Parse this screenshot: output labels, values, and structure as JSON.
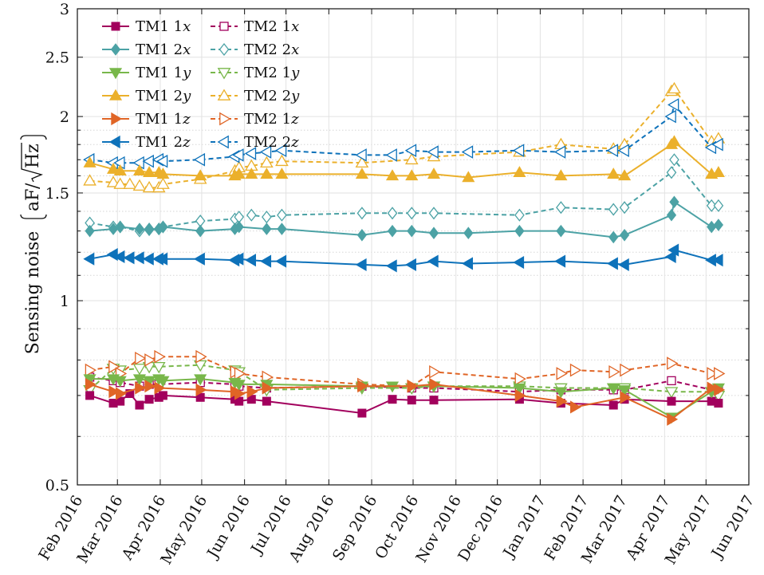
{
  "chart_data": {
    "type": "line",
    "title": "",
    "xlabel": "",
    "ylabel": "Sensing noise",
    "yunit": "aF/√Hz",
    "ylabel_parts": {
      "main": "Sensing noise",
      "unit_num": "aF",
      "unit_sqrt": "Hz"
    },
    "yscale": "log",
    "ylim": [
      0.5,
      3
    ],
    "yticks": [
      0.5,
      1,
      1.5,
      2,
      2.5,
      3
    ],
    "yticklabels": [
      "0.5",
      "1",
      "1.5",
      "2",
      "2.5",
      "3"
    ],
    "xlim": [
      "2016-02-01",
      "2017-06-01"
    ],
    "xticks": [
      "2016-02-01",
      "2016-03-01",
      "2016-04-01",
      "2016-05-01",
      "2016-06-01",
      "2016-07-01",
      "2016-08-01",
      "2016-09-01",
      "2016-10-01",
      "2016-11-01",
      "2016-12-01",
      "2017-01-01",
      "2017-02-01",
      "2017-03-01",
      "2017-04-01",
      "2017-05-01",
      "2017-06-01"
    ],
    "xticklabels": [
      "Feb 2016",
      "Mar 2016",
      "Apr 2016",
      "May 2016",
      "Jun 2016",
      "Jul 2016",
      "Aug 2016",
      "Sep 2016",
      "Oct 2016",
      "Nov 2016",
      "Dec 2016",
      "Jan 2017",
      "Feb 2017",
      "Mar 2017",
      "Apr 2017",
      "May 2017",
      "Jun 2017"
    ],
    "grid": true,
    "legend_position": "top-left",
    "series": [
      {
        "name": "TM1 1x",
        "label_main": "TM1 1",
        "label_axis": "x",
        "color": "#A2005D",
        "marker": "square",
        "filled": true,
        "dashed": false,
        "x": [
          "2016-02-10",
          "2016-02-27",
          "2016-03-03",
          "2016-03-10",
          "2016-03-17",
          "2016-03-24",
          "2016-03-31",
          "2016-04-03",
          "2016-04-30",
          "2016-05-25",
          "2016-05-28",
          "2016-06-06",
          "2016-06-17",
          "2016-08-25",
          "2016-09-16",
          "2016-09-30",
          "2016-10-16",
          "2016-12-17",
          "2017-01-16",
          "2017-02-23",
          "2017-03-03",
          "2017-04-06",
          "2017-05-05",
          "2017-05-10"
        ],
        "y": [
          0.7,
          0.68,
          0.685,
          0.705,
          0.675,
          0.69,
          0.695,
          0.7,
          0.695,
          0.69,
          0.685,
          0.69,
          0.685,
          0.655,
          0.69,
          0.688,
          0.688,
          0.69,
          0.68,
          0.675,
          0.69,
          0.685,
          0.685,
          0.68
        ]
      },
      {
        "name": "TM1 2x",
        "label_main": "TM1 2",
        "label_axis": "x",
        "color": "#4CA2A5",
        "marker": "diamond",
        "filled": true,
        "dashed": false,
        "x": [
          "2016-02-10",
          "2016-02-27",
          "2016-03-03",
          "2016-03-17",
          "2016-03-24",
          "2016-03-31",
          "2016-04-03",
          "2016-04-30",
          "2016-05-25",
          "2016-05-28",
          "2016-06-17",
          "2016-06-28",
          "2016-08-25",
          "2016-09-16",
          "2016-09-30",
          "2016-10-16",
          "2016-11-10",
          "2016-12-17",
          "2017-01-16",
          "2017-02-23",
          "2017-03-03",
          "2017-04-06",
          "2017-04-08",
          "2017-05-05",
          "2017-05-10"
        ],
        "y": [
          1.3,
          1.31,
          1.32,
          1.31,
          1.305,
          1.31,
          1.32,
          1.3,
          1.31,
          1.32,
          1.31,
          1.31,
          1.28,
          1.3,
          1.3,
          1.29,
          1.29,
          1.3,
          1.3,
          1.27,
          1.28,
          1.38,
          1.45,
          1.32,
          1.33
        ]
      },
      {
        "name": "TM1 1y",
        "label_main": "TM1 1",
        "label_axis": "y",
        "color": "#78B74A",
        "marker": "triangle-down",
        "filled": true,
        "dashed": false,
        "x": [
          "2016-02-10",
          "2016-02-27",
          "2016-03-03",
          "2016-03-17",
          "2016-03-24",
          "2016-03-31",
          "2016-04-03",
          "2016-04-30",
          "2016-05-25",
          "2016-05-28",
          "2016-06-17",
          "2016-08-25",
          "2016-09-16",
          "2016-10-16",
          "2016-12-17",
          "2017-01-16",
          "2017-02-23",
          "2017-03-03",
          "2017-04-06",
          "2017-05-05",
          "2017-05-10"
        ],
        "y": [
          0.745,
          0.745,
          0.74,
          0.745,
          0.74,
          0.745,
          0.74,
          0.745,
          0.735,
          0.73,
          0.73,
          0.725,
          0.725,
          0.725,
          0.72,
          0.71,
          0.72,
          0.715,
          0.645,
          0.71,
          0.72
        ]
      },
      {
        "name": "TM1 2y",
        "label_main": "TM1 2",
        "label_axis": "y",
        "color": "#EBB02B",
        "marker": "triangle-up",
        "filled": true,
        "dashed": false,
        "x": [
          "2016-02-10",
          "2016-02-27",
          "2016-03-03",
          "2016-03-17",
          "2016-03-24",
          "2016-03-31",
          "2016-04-03",
          "2016-04-30",
          "2016-05-25",
          "2016-05-28",
          "2016-06-06",
          "2016-06-17",
          "2016-06-28",
          "2016-08-25",
          "2016-09-16",
          "2016-09-30",
          "2016-10-16",
          "2016-11-10",
          "2016-12-17",
          "2017-01-16",
          "2017-02-23",
          "2017-03-03",
          "2017-04-06",
          "2017-04-08",
          "2017-05-05",
          "2017-05-10"
        ],
        "y": [
          1.68,
          1.64,
          1.63,
          1.63,
          1.62,
          1.62,
          1.61,
          1.6,
          1.6,
          1.61,
          1.61,
          1.61,
          1.61,
          1.61,
          1.6,
          1.6,
          1.61,
          1.59,
          1.62,
          1.6,
          1.61,
          1.6,
          1.8,
          1.82,
          1.61,
          1.62
        ]
      },
      {
        "name": "TM1 1z",
        "label_main": "TM1 1",
        "label_axis": "z",
        "color": "#E06526",
        "marker": "triangle-right",
        "filled": true,
        "dashed": false,
        "x": [
          "2016-02-10",
          "2016-02-27",
          "2016-03-03",
          "2016-03-17",
          "2016-03-24",
          "2016-03-31",
          "2016-04-30",
          "2016-05-25",
          "2016-05-28",
          "2016-06-06",
          "2016-06-17",
          "2016-08-25",
          "2016-09-30",
          "2016-10-16",
          "2016-12-17",
          "2017-01-16",
          "2017-01-26",
          "2017-03-03",
          "2017-04-06",
          "2017-05-05",
          "2017-05-10"
        ],
        "y": [
          0.73,
          0.71,
          0.705,
          0.72,
          0.725,
          0.72,
          0.715,
          0.71,
          0.705,
          0.71,
          0.72,
          0.725,
          0.725,
          0.73,
          0.7,
          0.685,
          0.67,
          0.695,
          0.64,
          0.72,
          0.715
        ]
      },
      {
        "name": "TM1 2z",
        "label_main": "TM1 2",
        "label_axis": "z",
        "color": "#0E72BA",
        "marker": "triangle-left",
        "filled": true,
        "dashed": false,
        "x": [
          "2016-02-10",
          "2016-02-27",
          "2016-03-03",
          "2016-03-10",
          "2016-03-17",
          "2016-03-24",
          "2016-03-31",
          "2016-04-03",
          "2016-04-30",
          "2016-05-25",
          "2016-05-28",
          "2016-06-06",
          "2016-06-17",
          "2016-06-28",
          "2016-08-25",
          "2016-09-16",
          "2016-09-30",
          "2016-10-16",
          "2016-11-10",
          "2016-12-17",
          "2017-01-16",
          "2017-02-23",
          "2017-03-03",
          "2017-04-06",
          "2017-04-08",
          "2017-05-05",
          "2017-05-10"
        ],
        "y": [
          1.17,
          1.19,
          1.18,
          1.175,
          1.175,
          1.17,
          1.17,
          1.17,
          1.17,
          1.165,
          1.17,
          1.165,
          1.16,
          1.16,
          1.145,
          1.14,
          1.145,
          1.16,
          1.15,
          1.155,
          1.16,
          1.15,
          1.145,
          1.18,
          1.21,
          1.165,
          1.165
        ]
      },
      {
        "name": "TM2 1x",
        "label_main": "TM2 1",
        "label_axis": "x",
        "color": "#A2005D",
        "marker": "square",
        "filled": false,
        "dashed": true,
        "x": [
          "2016-02-10",
          "2016-02-27",
          "2016-03-03",
          "2016-03-17",
          "2016-03-24",
          "2016-03-31",
          "2016-04-30",
          "2016-05-25",
          "2016-05-28",
          "2016-06-17",
          "2016-08-25",
          "2016-09-30",
          "2016-10-16",
          "2016-12-17",
          "2017-01-16",
          "2017-02-23",
          "2017-03-03",
          "2017-04-06",
          "2017-05-05",
          "2017-05-10"
        ],
        "y": [
          0.75,
          0.74,
          0.735,
          0.725,
          0.73,
          0.73,
          0.735,
          0.73,
          0.725,
          0.72,
          0.725,
          0.72,
          0.72,
          0.71,
          0.715,
          0.715,
          0.715,
          0.74,
          0.715,
          0.715
        ]
      },
      {
        "name": "TM2 2x",
        "label_main": "TM2 2",
        "label_axis": "x",
        "color": "#4CA2A5",
        "marker": "diamond",
        "filled": false,
        "dashed": true,
        "x": [
          "2016-02-10",
          "2016-02-27",
          "2016-03-03",
          "2016-03-17",
          "2016-03-24",
          "2016-03-31",
          "2016-04-03",
          "2016-04-30",
          "2016-05-25",
          "2016-05-28",
          "2016-06-06",
          "2016-06-17",
          "2016-06-28",
          "2016-08-25",
          "2016-09-16",
          "2016-09-30",
          "2016-10-16",
          "2016-12-17",
          "2017-01-16",
          "2017-02-23",
          "2017-03-03",
          "2017-04-06",
          "2017-04-08",
          "2017-05-05",
          "2017-05-10"
        ],
        "y": [
          1.34,
          1.32,
          1.32,
          1.3,
          1.31,
          1.31,
          1.32,
          1.35,
          1.36,
          1.37,
          1.38,
          1.37,
          1.38,
          1.39,
          1.39,
          1.39,
          1.39,
          1.38,
          1.42,
          1.41,
          1.42,
          1.62,
          1.7,
          1.43,
          1.43
        ]
      },
      {
        "name": "TM2 1y",
        "label_main": "TM2 1",
        "label_axis": "y",
        "color": "#78B74A",
        "marker": "triangle-down",
        "filled": false,
        "dashed": true,
        "x": [
          "2016-02-10",
          "2016-02-27",
          "2016-03-03",
          "2016-03-17",
          "2016-03-24",
          "2016-03-31",
          "2016-04-30",
          "2016-05-25",
          "2016-05-28",
          "2016-06-17",
          "2016-08-25",
          "2016-09-30",
          "2016-10-16",
          "2016-12-17",
          "2017-01-16",
          "2017-02-23",
          "2017-03-03",
          "2017-04-06",
          "2017-05-05",
          "2017-05-10"
        ],
        "y": [
          0.715,
          0.775,
          0.77,
          0.775,
          0.78,
          0.78,
          0.785,
          0.77,
          0.765,
          0.715,
          0.72,
          0.72,
          0.725,
          0.725,
          0.72,
          0.72,
          0.72,
          0.71,
          0.71,
          0.7
        ]
      },
      {
        "name": "TM2 2y",
        "label_main": "TM2 2",
        "label_axis": "y",
        "color": "#EBB02B",
        "marker": "triangle-up",
        "filled": false,
        "dashed": true,
        "x": [
          "2016-02-10",
          "2016-02-27",
          "2016-03-03",
          "2016-03-10",
          "2016-03-17",
          "2016-03-24",
          "2016-03-31",
          "2016-04-03",
          "2016-04-30",
          "2016-05-25",
          "2016-05-28",
          "2016-06-06",
          "2016-06-17",
          "2016-06-28",
          "2016-08-25",
          "2016-09-30",
          "2016-10-16",
          "2016-12-17",
          "2017-01-16",
          "2017-02-23",
          "2017-03-03",
          "2017-04-06",
          "2017-04-08",
          "2017-05-05",
          "2017-05-10"
        ],
        "y": [
          1.57,
          1.56,
          1.55,
          1.55,
          1.54,
          1.53,
          1.53,
          1.55,
          1.58,
          1.63,
          1.65,
          1.66,
          1.68,
          1.69,
          1.68,
          1.7,
          1.72,
          1.75,
          1.8,
          1.77,
          1.8,
          2.2,
          2.22,
          1.82,
          1.84
        ]
      },
      {
        "name": "TM2 1z",
        "label_main": "TM2 1",
        "label_axis": "z",
        "color": "#E06526",
        "marker": "triangle-right",
        "filled": false,
        "dashed": true,
        "x": [
          "2016-02-10",
          "2016-02-27",
          "2016-03-03",
          "2016-03-17",
          "2016-03-24",
          "2016-03-31",
          "2016-04-30",
          "2016-05-25",
          "2016-05-28",
          "2016-06-17",
          "2016-08-25",
          "2016-09-30",
          "2016-10-16",
          "2016-12-17",
          "2017-01-16",
          "2017-01-26",
          "2017-02-23",
          "2017-03-03",
          "2017-04-06",
          "2017-05-05",
          "2017-05-10"
        ],
        "y": [
          0.77,
          0.78,
          0.76,
          0.805,
          0.8,
          0.81,
          0.81,
          0.765,
          0.76,
          0.75,
          0.73,
          0.725,
          0.765,
          0.745,
          0.76,
          0.77,
          0.765,
          0.77,
          0.79,
          0.76,
          0.76
        ]
      },
      {
        "name": "TM2 2z",
        "label_main": "TM2 2",
        "label_axis": "z",
        "color": "#0E72BA",
        "marker": "triangle-left",
        "filled": false,
        "dashed": true,
        "x": [
          "2016-02-10",
          "2016-02-27",
          "2016-03-03",
          "2016-03-17",
          "2016-03-24",
          "2016-03-31",
          "2016-04-03",
          "2016-04-30",
          "2016-05-25",
          "2016-05-28",
          "2016-06-06",
          "2016-06-17",
          "2016-06-28",
          "2016-08-25",
          "2016-09-16",
          "2016-09-30",
          "2016-10-16",
          "2016-11-10",
          "2016-12-17",
          "2017-01-16",
          "2017-02-23",
          "2017-03-03",
          "2017-04-06",
          "2017-04-08",
          "2017-05-05",
          "2017-05-10"
        ],
        "y": [
          1.7,
          1.68,
          1.68,
          1.68,
          1.69,
          1.7,
          1.69,
          1.7,
          1.72,
          1.73,
          1.74,
          1.75,
          1.76,
          1.73,
          1.73,
          1.76,
          1.75,
          1.75,
          1.76,
          1.75,
          1.76,
          1.76,
          2.0,
          2.09,
          1.78,
          1.8
        ]
      }
    ]
  }
}
